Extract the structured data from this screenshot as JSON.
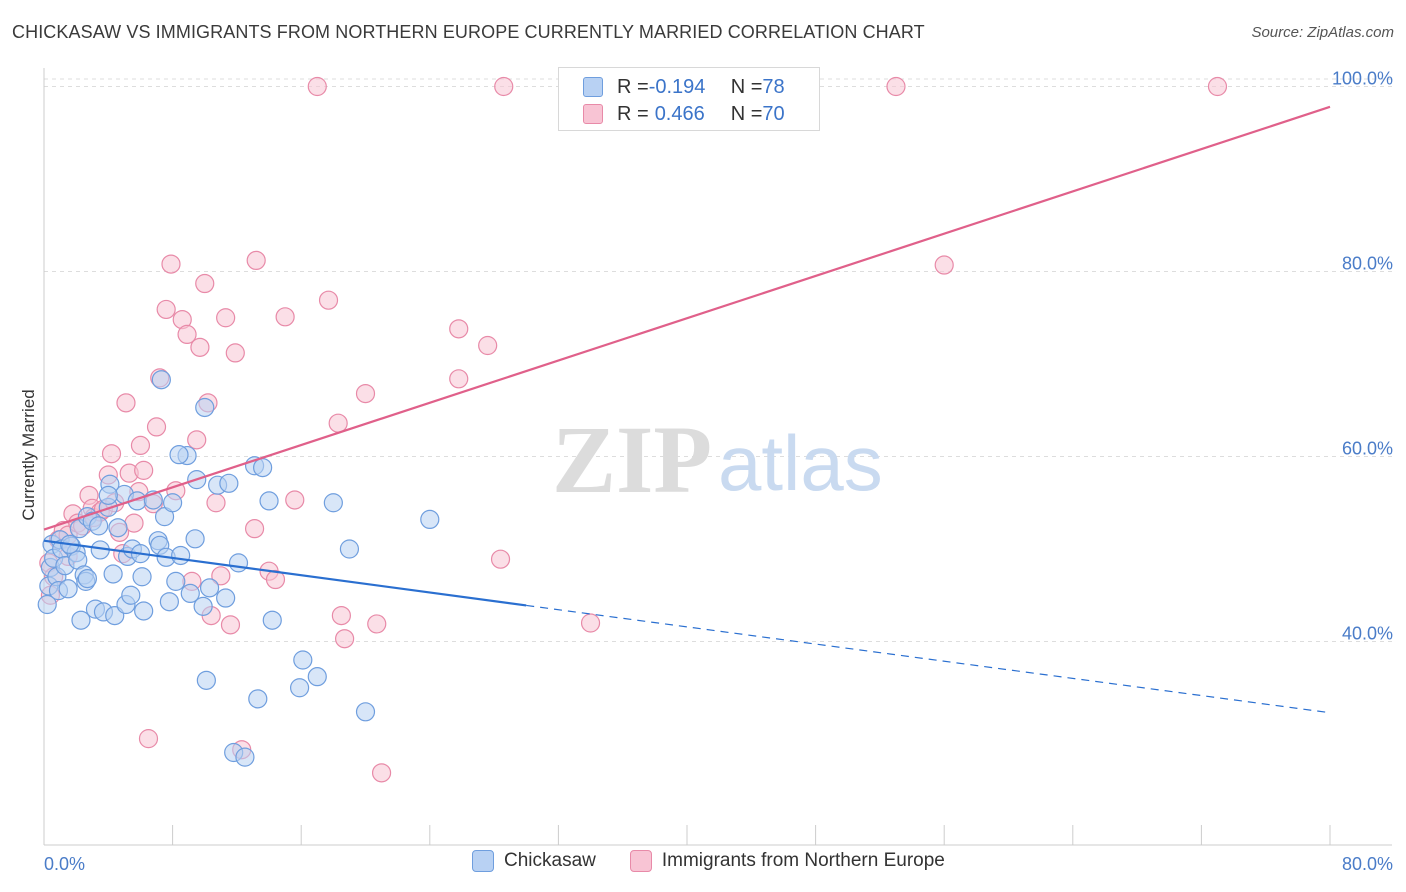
{
  "title": "CHICKASAW VS IMMIGRANTS FROM NORTHERN EUROPE CURRENTLY MARRIED CORRELATION CHART",
  "source": "Source: ZipAtlas.com",
  "watermark": {
    "zip": "ZIP",
    "atlas": "atlas"
  },
  "legend_top": {
    "rows": [
      {
        "r_label": "R = ",
        "r_value": "-0.194",
        "n_label": "N = ",
        "n_value": "78"
      },
      {
        "r_label": "R = ",
        "r_value": "0.466",
        "n_label": "N = ",
        "n_value": "70"
      }
    ]
  },
  "legend_bottom": {
    "series_a": "Chickasaw",
    "series_b": "Immigrants from Northern Europe"
  },
  "colors": {
    "series_a_fill": "#b8d1f3",
    "series_a_stroke": "#6f9ede",
    "series_a_line": "#2a6fd0",
    "series_b_fill": "#f8c4d4",
    "series_b_stroke": "#e88aa8",
    "series_b_line": "#e0608a",
    "axis_text": "#4a7cc8",
    "grid": "#dddddd"
  },
  "chart_data": {
    "type": "scatter",
    "title": "CHICKASAW VS IMMIGRANTS FROM NORTHERN EUROPE CURRENTLY MARRIED CORRELATION CHART",
    "xlabel": "",
    "ylabel": "Currently Married",
    "xlim": [
      0,
      80
    ],
    "ylim": [
      18,
      102
    ],
    "x_tick_labels": [
      "0.0%",
      "80.0%"
    ],
    "y_ticks": [
      40,
      60,
      80,
      100
    ],
    "y_tick_labels": [
      "40.0%",
      "60.0%",
      "80.0%",
      "100.0%"
    ],
    "grid": true,
    "legend_position": "top-center",
    "series": [
      {
        "name": "Chickasaw",
        "r": -0.194,
        "n": 78,
        "trend": {
          "x0": 0,
          "y0": 50.9,
          "x1": 30,
          "y1": 43.9,
          "x_dash_end": 80,
          "y_dash_end": 32.3
        },
        "points": [
          [
            0.2,
            44
          ],
          [
            0.3,
            46
          ],
          [
            0.4,
            48
          ],
          [
            0.5,
            50.5
          ],
          [
            0.6,
            49
          ],
          [
            0.8,
            47
          ],
          [
            0.9,
            45.5
          ],
          [
            1.0,
            51
          ],
          [
            1.1,
            50
          ],
          [
            1.3,
            48.2
          ],
          [
            1.5,
            45.7
          ],
          [
            1.7,
            50.3
          ],
          [
            2.0,
            49.6
          ],
          [
            2.1,
            48.8
          ],
          [
            2.2,
            52.2
          ],
          [
            2.3,
            42.3
          ],
          [
            2.5,
            47.2
          ],
          [
            2.6,
            46.5
          ],
          [
            2.7,
            53.5
          ],
          [
            3.0,
            53
          ],
          [
            3.2,
            43.5
          ],
          [
            3.4,
            52.5
          ],
          [
            3.5,
            49.9
          ],
          [
            3.7,
            43.2
          ],
          [
            4.0,
            54.5
          ],
          [
            4.1,
            57
          ],
          [
            4.3,
            47.3
          ],
          [
            4.4,
            42.8
          ],
          [
            4.6,
            52.3
          ],
          [
            5.0,
            55.9
          ],
          [
            5.1,
            44
          ],
          [
            5.2,
            49.2
          ],
          [
            5.4,
            45
          ],
          [
            5.5,
            50
          ],
          [
            5.8,
            55.2
          ],
          [
            6.0,
            49.5
          ],
          [
            6.1,
            47
          ],
          [
            6.2,
            43.3
          ],
          [
            6.8,
            55.3
          ],
          [
            7.1,
            50.9
          ],
          [
            7.2,
            50.4
          ],
          [
            7.3,
            68.3
          ],
          [
            7.5,
            53.5
          ],
          [
            7.6,
            49.1
          ],
          [
            7.8,
            44.3
          ],
          [
            8.0,
            55
          ],
          [
            8.2,
            46.5
          ],
          [
            8.5,
            49.3
          ],
          [
            8.9,
            60.1
          ],
          [
            9.1,
            45.2
          ],
          [
            9.4,
            51.1
          ],
          [
            9.5,
            57.5
          ],
          [
            9.9,
            43.8
          ],
          [
            10.0,
            65.3
          ],
          [
            10.1,
            35.8
          ],
          [
            10.3,
            45.8
          ],
          [
            10.8,
            56.9
          ],
          [
            11.3,
            44.7
          ],
          [
            11.5,
            57.1
          ],
          [
            11.8,
            28
          ],
          [
            12.1,
            48.5
          ],
          [
            12.5,
            27.5
          ],
          [
            13.1,
            59
          ],
          [
            13.3,
            33.8
          ],
          [
            13.6,
            58.8
          ],
          [
            14.0,
            55.2
          ],
          [
            14.2,
            42.3
          ],
          [
            15.9,
            35
          ],
          [
            16.1,
            38
          ],
          [
            17.0,
            36.2
          ],
          [
            18.0,
            55
          ],
          [
            19.0,
            50
          ],
          [
            20.0,
            32.4
          ],
          [
            24.0,
            53.2
          ],
          [
            4.0,
            55.8
          ],
          [
            1.6,
            50.5
          ],
          [
            8.4,
            60.2
          ],
          [
            2.7,
            46.8
          ]
        ]
      },
      {
        "name": "Immigrants from Northern Europe",
        "r": 0.466,
        "n": 70,
        "trend": {
          "x0": 0,
          "y0": 52.1,
          "x1": 80,
          "y1": 97.8
        },
        "points": [
          [
            0.3,
            48.5
          ],
          [
            0.4,
            45
          ],
          [
            0.6,
            47
          ],
          [
            0.9,
            51
          ],
          [
            1.2,
            52
          ],
          [
            1.5,
            51.5
          ],
          [
            1.8,
            53.8
          ],
          [
            2.1,
            52.8
          ],
          [
            2.4,
            52.5
          ],
          [
            2.8,
            55.8
          ],
          [
            3.0,
            54.4
          ],
          [
            3.1,
            53.4
          ],
          [
            3.5,
            54
          ],
          [
            3.7,
            54.3
          ],
          [
            4.0,
            58
          ],
          [
            4.2,
            60.3
          ],
          [
            4.4,
            55
          ],
          [
            4.7,
            51.8
          ],
          [
            4.9,
            49.5
          ],
          [
            5.1,
            65.8
          ],
          [
            5.3,
            58.2
          ],
          [
            5.6,
            52.8
          ],
          [
            5.9,
            56.2
          ],
          [
            6.0,
            61.2
          ],
          [
            6.2,
            58.5
          ],
          [
            6.5,
            29.5
          ],
          [
            6.8,
            54.9
          ],
          [
            7.0,
            63.2
          ],
          [
            7.2,
            68.5
          ],
          [
            7.6,
            75.9
          ],
          [
            7.9,
            80.8
          ],
          [
            8.2,
            56.3
          ],
          [
            8.6,
            74.8
          ],
          [
            8.9,
            73.2
          ],
          [
            9.2,
            46.5
          ],
          [
            9.7,
            71.8
          ],
          [
            10.0,
            78.7
          ],
          [
            10.2,
            65.8
          ],
          [
            10.4,
            42.8
          ],
          [
            10.7,
            55
          ],
          [
            11.0,
            47.1
          ],
          [
            11.3,
            75
          ],
          [
            11.6,
            41.8
          ],
          [
            11.9,
            71.2
          ],
          [
            12.3,
            28.3
          ],
          [
            13.1,
            52.2
          ],
          [
            13.2,
            81.2
          ],
          [
            14.0,
            47.6
          ],
          [
            14.4,
            46.7
          ],
          [
            15.0,
            75.1
          ],
          [
            15.6,
            55.3
          ],
          [
            17.7,
            76.9
          ],
          [
            18.3,
            63.6
          ],
          [
            18.5,
            42.8
          ],
          [
            18.7,
            40.3
          ],
          [
            20.0,
            66.8
          ],
          [
            20.7,
            41.9
          ],
          [
            21.0,
            25.8
          ],
          [
            25.8,
            73.8
          ],
          [
            25.8,
            68.4
          ],
          [
            27.6,
            72
          ],
          [
            28.4,
            48.9
          ],
          [
            17.0,
            100
          ],
          [
            28.6,
            100
          ],
          [
            34.0,
            42
          ],
          [
            53.0,
            100
          ],
          [
            56.0,
            80.7
          ],
          [
            73.0,
            100
          ],
          [
            1.5,
            49.2
          ],
          [
            9.5,
            61.8
          ]
        ]
      }
    ]
  }
}
